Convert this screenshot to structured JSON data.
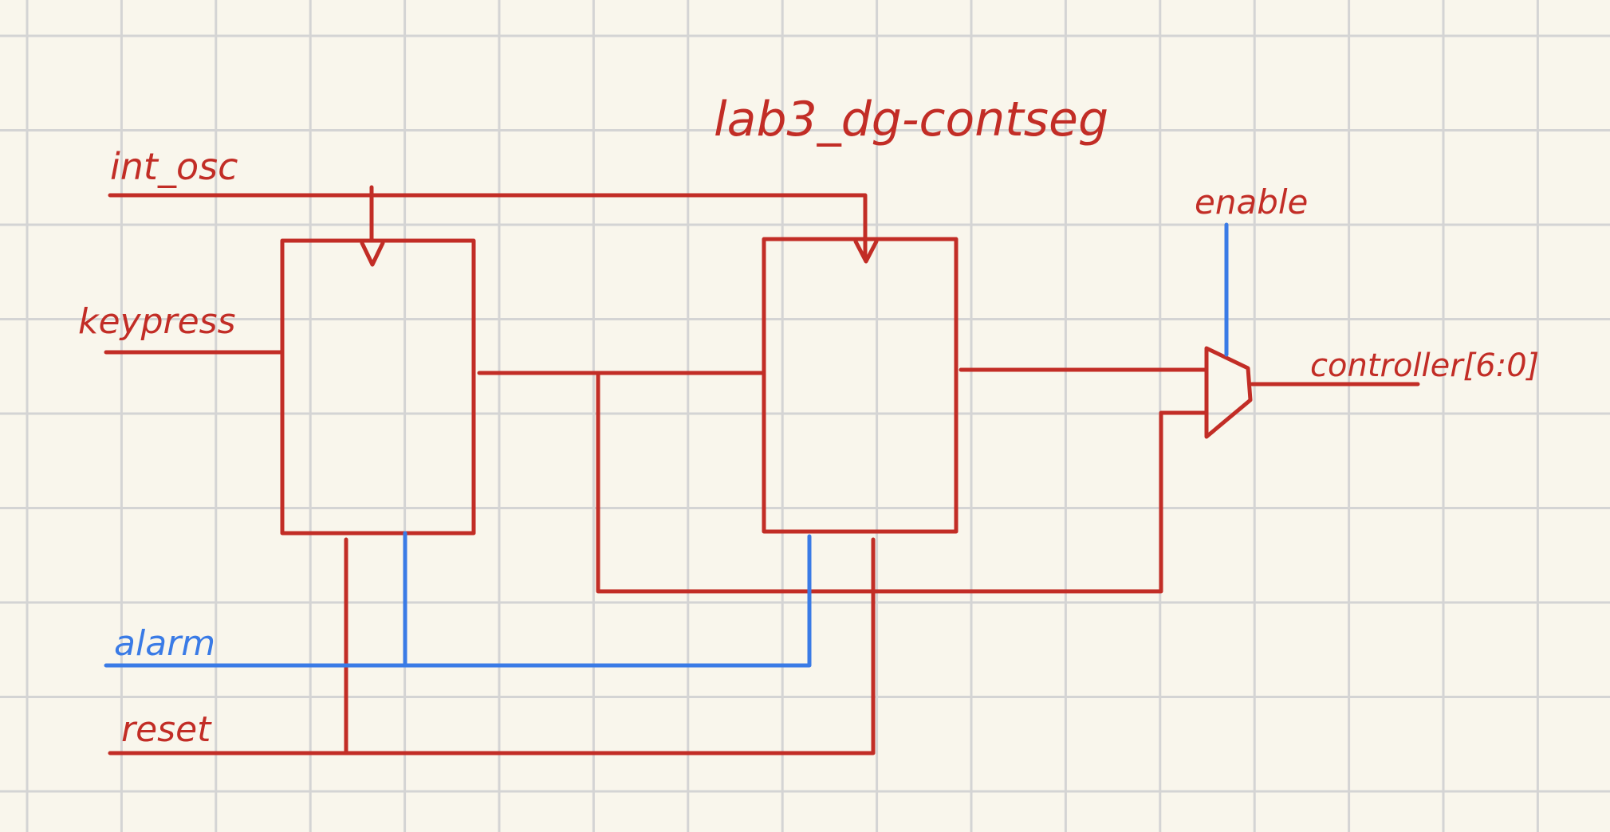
{
  "title": "lab3_dg-contseg",
  "colors": {
    "paper": "#f9f6ec",
    "grid": "#d4d4d4",
    "wire": "#c22d26",
    "control": "#3a7be6"
  },
  "signals": {
    "clock": "int_osc",
    "input": "keypress",
    "control": "alarm",
    "reset": "reset",
    "mux_select": "enable",
    "output": "controller[6:0]"
  }
}
